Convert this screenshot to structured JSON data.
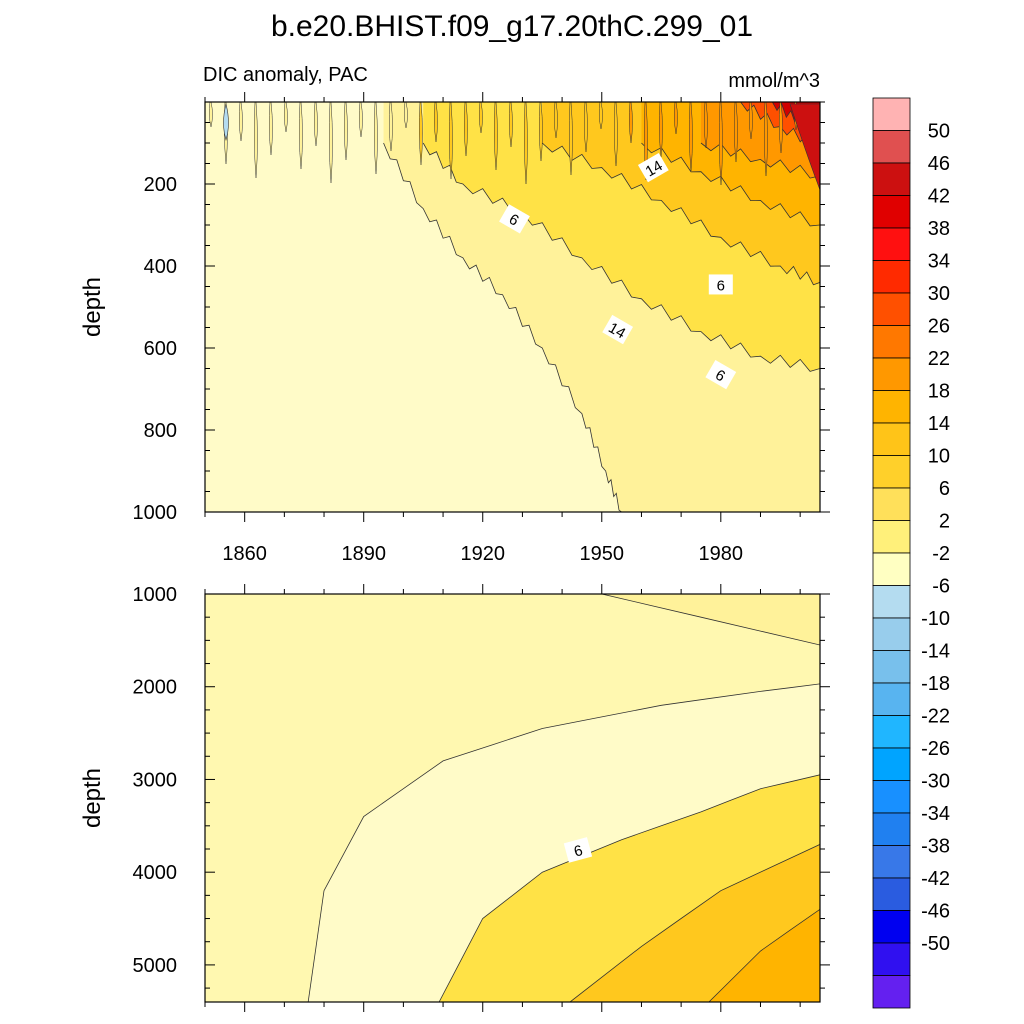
{
  "figure": {
    "title": "b.e20.BHIST.f09_g17.20thC.299_01",
    "panel_label": "DIC anomaly, PAC",
    "units": "mmol/m^3"
  },
  "chart_data": [
    {
      "type": "heatmap",
      "panel": "upper",
      "title": "DIC anomaly, PAC",
      "ylabel": "depth",
      "xlabel": "",
      "units": "mmol/m^3",
      "xlim": [
        1850,
        2005
      ],
      "ylim": [
        0,
        1000
      ],
      "y_inverted": true,
      "x_ticks": [
        1860,
        1890,
        1920,
        1950,
        1980
      ],
      "y_ticks": [
        200,
        400,
        600,
        800,
        1000
      ],
      "contour_labels": [
        "14",
        "6",
        "14",
        "6",
        "6"
      ],
      "contour_boundaries": [
        {
          "level": 2,
          "points": [
            [
              1895,
              100
            ],
            [
              1905,
              260
            ],
            [
              1915,
              380
            ],
            [
              1925,
              470
            ],
            [
              1935,
              600
            ],
            [
              1945,
              760
            ],
            [
              1951,
              900
            ],
            [
              1955,
              1000
            ]
          ]
        },
        {
          "level": 6,
          "points": [
            [
              1905,
              100
            ],
            [
              1915,
              200
            ],
            [
              1930,
              270
            ],
            [
              1945,
              380
            ],
            [
              1960,
              480
            ],
            [
              1975,
              560
            ],
            [
              1990,
              620
            ],
            [
              2005,
              650
            ]
          ]
        },
        {
          "level": 10,
          "points": [
            [
              1935,
              100
            ],
            [
              1950,
              160
            ],
            [
              1965,
              240
            ],
            [
              1980,
              330
            ],
            [
              1995,
              400
            ],
            [
              2005,
              440
            ]
          ]
        },
        {
          "level": 14,
          "points": [
            [
              1960,
              100
            ],
            [
              1975,
              170
            ],
            [
              1990,
              240
            ],
            [
              2005,
              300
            ]
          ]
        },
        {
          "level": 18,
          "points": [
            [
              1975,
              100
            ],
            [
              1990,
              140
            ],
            [
              2005,
              180
            ]
          ]
        },
        {
          "level": 26,
          "points": [
            [
              1985,
              0
            ],
            [
              1995,
              60
            ],
            [
              2005,
              110
            ]
          ]
        },
        {
          "level": 34,
          "points": [
            [
              1993,
              0
            ],
            [
              2000,
              50
            ],
            [
              2005,
              80
            ]
          ]
        }
      ]
    },
    {
      "type": "heatmap",
      "panel": "lower",
      "title": "",
      "ylabel": "depth",
      "xlabel": "",
      "units": "mmol/m^3",
      "xlim": [
        1850,
        2005
      ],
      "ylim": [
        1000,
        5400
      ],
      "y_inverted": true,
      "y_ticks": [
        1000,
        2000,
        3000,
        4000,
        5000
      ],
      "contour_labels": [
        "6"
      ],
      "contour_boundaries": [
        {
          "level": 2,
          "points": [
            [
              1950,
              1000
            ],
            [
              1975,
              1250
            ],
            [
              2005,
              1550
            ]
          ]
        },
        {
          "level": -2,
          "points": [
            [
              1876,
              5400
            ],
            [
              1880,
              4200
            ],
            [
              1890,
              3400
            ],
            [
              1910,
              2800
            ],
            [
              1935,
              2450
            ],
            [
              1965,
              2200
            ],
            [
              1990,
              2050
            ],
            [
              2005,
              1970
            ]
          ]
        },
        {
          "level": 6,
          "points": [
            [
              1909,
              5400
            ],
            [
              1920,
              4500
            ],
            [
              1935,
              4000
            ],
            [
              1955,
              3650
            ],
            [
              1975,
              3350
            ],
            [
              1990,
              3100
            ],
            [
              2005,
              2950
            ]
          ]
        },
        {
          "level": 10,
          "points": [
            [
              1942,
              5400
            ],
            [
              1960,
              4800
            ],
            [
              1980,
              4200
            ],
            [
              2005,
              3700
            ]
          ]
        },
        {
          "level": 14,
          "points": [
            [
              1977,
              5400
            ],
            [
              1990,
              4850
            ],
            [
              2005,
              4400
            ]
          ]
        }
      ]
    }
  ],
  "colorbar": {
    "labels": [
      "50",
      "46",
      "42",
      "38",
      "34",
      "30",
      "26",
      "22",
      "18",
      "14",
      "10",
      "6",
      "2",
      "-2",
      "-6",
      "-10",
      "-14",
      "-18",
      "-22",
      "-26",
      "-30",
      "-34",
      "-38",
      "-42",
      "-46",
      "-50"
    ],
    "colors": [
      "#ffb3b3",
      "#e05050",
      "#cc1010",
      "#e00000",
      "#ff1010",
      "#ff2a00",
      "#ff5000",
      "#ff7800",
      "#ff9800",
      "#ffb400",
      "#ffc418",
      "#ffd02a",
      "#ffe05a",
      "#fff07a",
      "#ffffc2",
      "#b4dcf0",
      "#98cdec",
      "#78c0ec",
      "#58b4f0",
      "#20b6ff",
      "#00a4ff",
      "#1890ff",
      "#2080f0",
      "#3878e8",
      "#2a5ce0",
      "#0000f0",
      "#3010f0",
      "#6420f0"
    ]
  }
}
